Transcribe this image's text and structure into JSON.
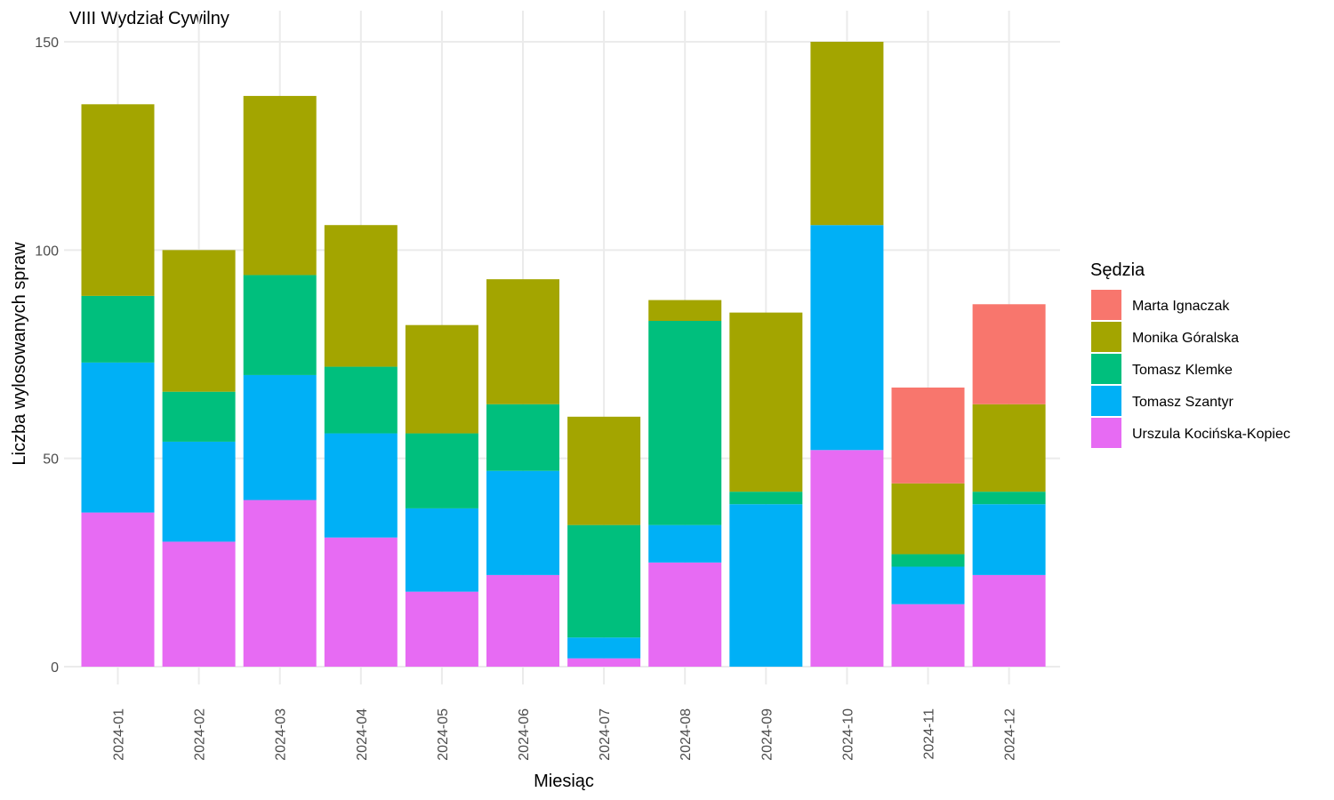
{
  "chart_data": {
    "type": "bar",
    "stacked": true,
    "title": "VIII Wydział Cywilny",
    "xlabel": "Miesiąc",
    "ylabel": "Liczba wylosowanych spraw",
    "ylim": [
      0,
      150
    ],
    "yticks": [
      0,
      50,
      100,
      150
    ],
    "grid": true,
    "legend_position": "right",
    "legend_title": "Sędzia",
    "categories": [
      "2024-01",
      "2024-02",
      "2024-03",
      "2024-04",
      "2024-05",
      "2024-06",
      "2024-07",
      "2024-08",
      "2024-09",
      "2024-10",
      "2024-11",
      "2024-12"
    ],
    "series": [
      {
        "name": "Marta Ignaczak",
        "color": "#F8766D",
        "values": [
          0,
          0,
          0,
          0,
          0,
          0,
          0,
          0,
          0,
          0,
          23,
          24
        ]
      },
      {
        "name": "Monika Góralska",
        "color": "#A3A500",
        "values": [
          46,
          34,
          43,
          34,
          26,
          30,
          26,
          5,
          43,
          44,
          17,
          21
        ]
      },
      {
        "name": "Tomasz Klemke",
        "color": "#00BF7D",
        "values": [
          16,
          12,
          24,
          16,
          18,
          16,
          27,
          49,
          3,
          0,
          3,
          3
        ]
      },
      {
        "name": "Tomasz Szantyr",
        "color": "#00B0F6",
        "values": [
          36,
          24,
          30,
          25,
          20,
          25,
          5,
          9,
          39,
          54,
          9,
          17
        ]
      },
      {
        "name": "Urszula Kocińska-Kopiec",
        "color": "#E76BF3",
        "values": [
          37,
          30,
          40,
          31,
          18,
          22,
          2,
          25,
          0,
          52,
          15,
          22
        ]
      }
    ]
  }
}
